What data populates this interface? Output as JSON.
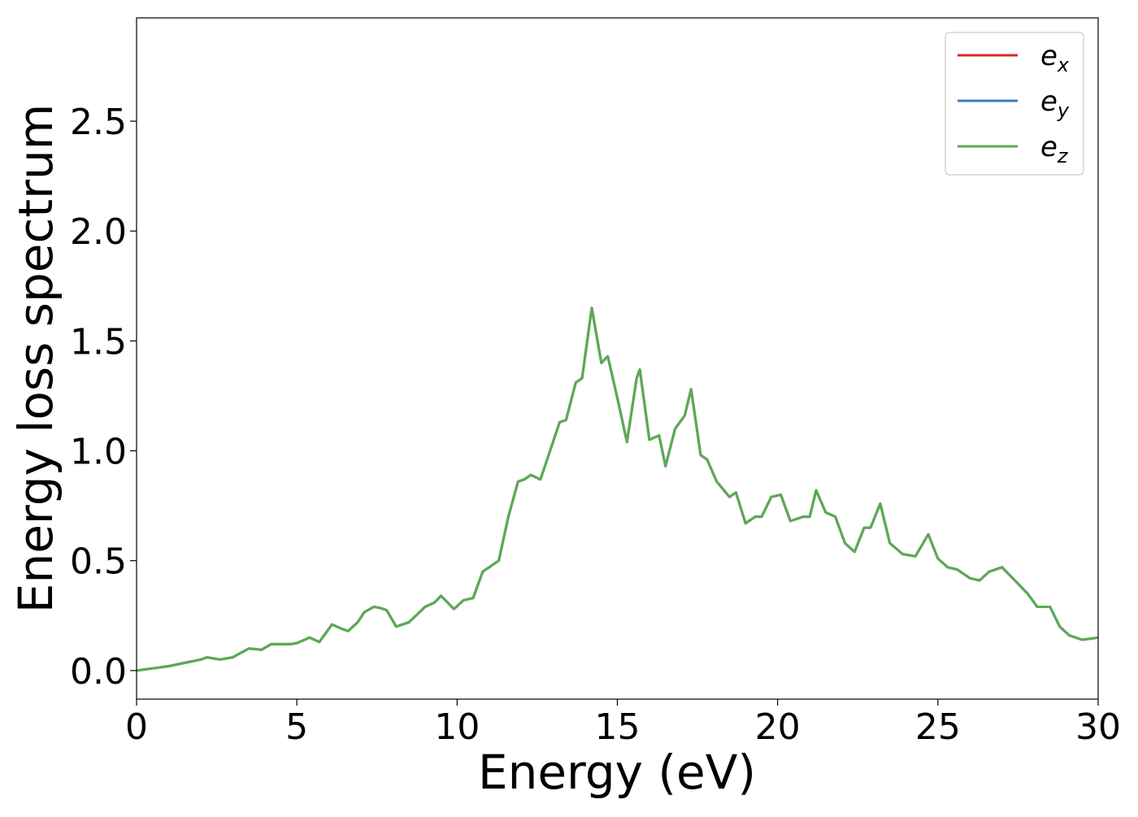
{
  "chart_data": {
    "type": "line",
    "title": "",
    "xlabel": "Energy (eV)",
    "ylabel": "Energy loss spectrum",
    "xlim": [
      0,
      30
    ],
    "ylim": [
      -0.13,
      2.97
    ],
    "xticks": [
      0,
      5,
      10,
      15,
      20,
      25,
      30
    ],
    "xtick_labels": [
      "0",
      "5",
      "10",
      "15",
      "20",
      "25",
      "30"
    ],
    "yticks": [
      0.0,
      0.5,
      1.0,
      1.5,
      2.0,
      2.5
    ],
    "ytick_labels": [
      "0.0",
      "0.5",
      "1.0",
      "1.5",
      "2.0",
      "2.5"
    ],
    "grid": false,
    "legend_position": "top-right",
    "x": [
      0,
      0.5,
      1,
      1.5,
      2,
      2.2,
      2.6,
      3,
      3.5,
      3.9,
      4.2,
      4.8,
      5,
      5.4,
      5.7,
      6.1,
      6.4,
      6.6,
      6.9,
      7.1,
      7.4,
      7.6,
      7.8,
      8.1,
      8.5,
      9,
      9.3,
      9.5,
      9.9,
      10.2,
      10.5,
      10.8,
      11.3,
      11.6,
      11.9,
      12.1,
      12.3,
      12.6,
      12.9,
      13.2,
      13.4,
      13.7,
      13.9,
      14.2,
      14.5,
      14.7,
      15,
      15.3,
      15.6,
      15.7,
      16,
      16.3,
      16.5,
      16.8,
      17.1,
      17.3,
      17.6,
      17.8,
      18.1,
      18.5,
      18.7,
      19,
      19.3,
      19.5,
      19.8,
      20.1,
      20.4,
      20.8,
      21,
      21.2,
      21.5,
      21.8,
      22.1,
      22.4,
      22.7,
      22.9,
      23.2,
      23.5,
      23.9,
      24.3,
      24.7,
      25,
      25.3,
      25.6,
      26,
      26.3,
      26.6,
      27,
      27.4,
      27.8,
      28.1,
      28.5,
      28.8,
      29.1,
      29.5,
      30
    ],
    "series": [
      {
        "name": "e_x",
        "label_base": "e",
        "label_sub": "x",
        "color": "#d62728",
        "y": [
          0.0,
          0.01,
          0.02,
          0.035,
          0.05,
          0.06,
          0.05,
          0.06,
          0.1,
          0.095,
          0.12,
          0.12,
          0.125,
          0.15,
          0.13,
          0.21,
          0.19,
          0.18,
          0.22,
          0.265,
          0.29,
          0.285,
          0.275,
          0.2,
          0.22,
          0.29,
          0.31,
          0.34,
          0.28,
          0.32,
          0.33,
          0.45,
          0.5,
          0.7,
          0.86,
          0.87,
          0.89,
          0.87,
          1.0,
          1.13,
          1.14,
          1.31,
          1.33,
          1.65,
          1.4,
          1.43,
          1.24,
          1.04,
          1.33,
          1.37,
          1.05,
          1.07,
          0.93,
          1.1,
          1.16,
          1.28,
          0.98,
          0.96,
          0.86,
          0.79,
          0.81,
          0.67,
          0.7,
          0.7,
          0.79,
          0.8,
          0.68,
          0.7,
          0.7,
          0.82,
          0.72,
          0.7,
          0.58,
          0.54,
          0.65,
          0.65,
          0.76,
          0.58,
          0.53,
          0.52,
          0.62,
          0.51,
          0.47,
          0.46,
          0.42,
          0.41,
          0.45,
          0.47,
          0.41,
          0.35,
          0.29,
          0.29,
          0.2,
          0.16,
          0.14,
          0.15
        ]
      },
      {
        "name": "e_y",
        "label_base": "e",
        "label_sub": "y",
        "color": "#3a7ebf",
        "y": [
          0.0,
          0.01,
          0.02,
          0.035,
          0.05,
          0.06,
          0.05,
          0.06,
          0.1,
          0.095,
          0.12,
          0.12,
          0.125,
          0.15,
          0.13,
          0.21,
          0.19,
          0.18,
          0.22,
          0.265,
          0.29,
          0.285,
          0.275,
          0.2,
          0.22,
          0.29,
          0.31,
          0.34,
          0.28,
          0.32,
          0.33,
          0.45,
          0.5,
          0.7,
          0.86,
          0.87,
          0.89,
          0.87,
          1.0,
          1.13,
          1.14,
          1.31,
          1.33,
          1.65,
          1.4,
          1.43,
          1.24,
          1.04,
          1.33,
          1.37,
          1.05,
          1.07,
          0.93,
          1.1,
          1.16,
          1.28,
          0.98,
          0.96,
          0.86,
          0.79,
          0.81,
          0.67,
          0.7,
          0.7,
          0.79,
          0.8,
          0.68,
          0.7,
          0.7,
          0.82,
          0.72,
          0.7,
          0.58,
          0.54,
          0.65,
          0.65,
          0.76,
          0.58,
          0.53,
          0.52,
          0.62,
          0.51,
          0.47,
          0.46,
          0.42,
          0.41,
          0.45,
          0.47,
          0.41,
          0.35,
          0.29,
          0.29,
          0.2,
          0.16,
          0.14,
          0.15
        ]
      },
      {
        "name": "e_z",
        "label_base": "e",
        "label_sub": "z",
        "color": "#5aab51",
        "y": [
          0.0,
          0.01,
          0.02,
          0.035,
          0.05,
          0.06,
          0.05,
          0.06,
          0.1,
          0.095,
          0.12,
          0.12,
          0.125,
          0.15,
          0.13,
          0.21,
          0.19,
          0.18,
          0.22,
          0.265,
          0.29,
          0.285,
          0.275,
          0.2,
          0.22,
          0.29,
          0.31,
          0.34,
          0.28,
          0.32,
          0.33,
          0.45,
          0.5,
          0.7,
          0.86,
          0.87,
          0.89,
          0.87,
          1.0,
          1.13,
          1.14,
          1.31,
          1.33,
          1.65,
          1.4,
          1.43,
          1.24,
          1.04,
          1.33,
          1.37,
          1.05,
          1.07,
          0.93,
          1.1,
          1.16,
          1.28,
          0.98,
          0.96,
          0.86,
          0.79,
          0.81,
          0.67,
          0.7,
          0.7,
          0.79,
          0.8,
          0.68,
          0.7,
          0.7,
          0.82,
          0.72,
          0.7,
          0.58,
          0.54,
          0.65,
          0.65,
          0.76,
          0.58,
          0.53,
          0.52,
          0.62,
          0.51,
          0.47,
          0.46,
          0.42,
          0.41,
          0.45,
          0.47,
          0.41,
          0.35,
          0.29,
          0.29,
          0.2,
          0.16,
          0.14,
          0.15
        ]
      }
    ]
  }
}
